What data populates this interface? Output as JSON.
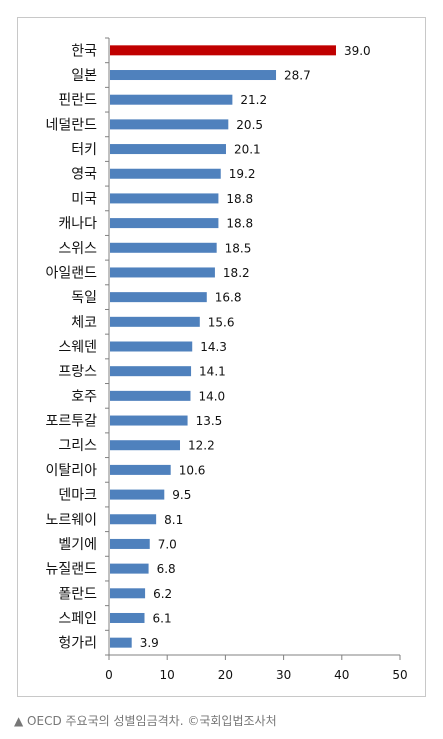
{
  "caption": "▲ OECD 주요국의 성별임금격차.   ©국회입법조사처",
  "chart_data": {
    "type": "bar",
    "orientation": "horizontal",
    "categories": [
      "한국",
      "일본",
      "핀란드",
      "네덜란드",
      "터키",
      "영국",
      "미국",
      "캐나다",
      "스위스",
      "아일랜드",
      "독일",
      "체코",
      "스웨덴",
      "프랑스",
      "호주",
      "포르투갈",
      "그리스",
      "이탈리아",
      "덴마크",
      "노르웨이",
      "벨기에",
      "뉴질랜드",
      "폴란드",
      "스페인",
      "헝가리"
    ],
    "values": [
      39.0,
      28.7,
      21.2,
      20.5,
      20.1,
      19.2,
      18.8,
      18.8,
      18.5,
      18.2,
      16.8,
      15.6,
      14.3,
      14.1,
      14.0,
      13.5,
      12.2,
      10.6,
      9.5,
      8.1,
      7.0,
      6.8,
      6.2,
      6.1,
      3.9
    ],
    "value_labels": [
      "39.0",
      "28.7",
      "21.2",
      "20.5",
      "20.1",
      "19.2",
      "18.8",
      "18.8",
      "18.5",
      "18.2",
      "16.8",
      "15.6",
      "14.3",
      "14.1",
      "14.0",
      "13.5",
      "12.2",
      "10.6",
      "9.5",
      "8.1",
      "7.0",
      "6.8",
      "6.2",
      "6.1",
      "3.9"
    ],
    "xlim": [
      0,
      50
    ],
    "xticks": [
      "0",
      "10",
      "20",
      "30",
      "40",
      "50"
    ],
    "title": "",
    "xlabel": "",
    "ylabel": "",
    "grid": false,
    "colors": {
      "bar": "#4f81bd",
      "highlight": "#c00000",
      "axis": "#808080"
    },
    "highlight_index": 0
  }
}
